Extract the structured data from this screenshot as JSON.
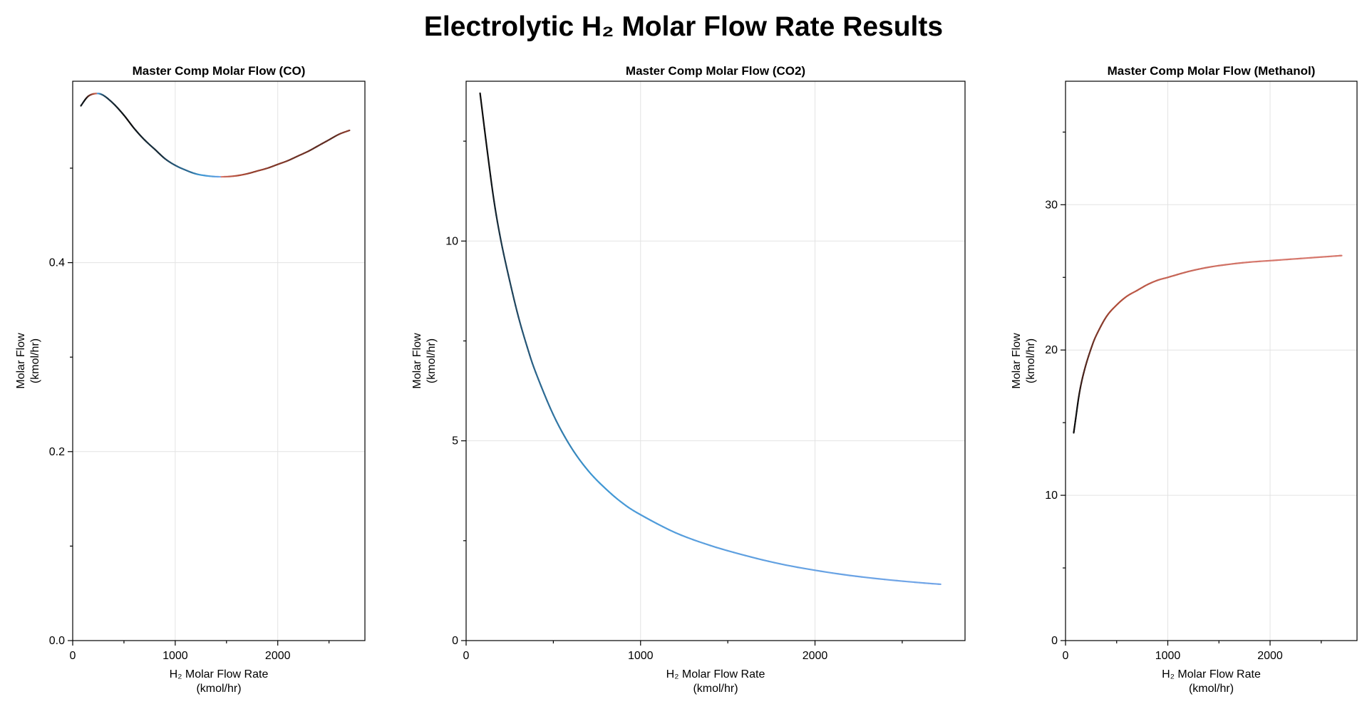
{
  "title": "Electrolytic H₂ Molar Flow Rate Results",
  "chart_data": [
    {
      "type": "line",
      "title": "Master Comp Molar Flow (CO)",
      "xlabel": [
        "H₂ Molar Flow Rate",
        "(kmol/hr)"
      ],
      "ylabel": [
        "Molar Flow",
        "(kmol/hr)"
      ],
      "xlim": [
        0,
        2850
      ],
      "ylim": [
        0,
        0.592
      ],
      "xticks": [
        0,
        1000,
        2000
      ],
      "xtick_labels": [
        "0",
        "1000",
        "2000"
      ],
      "xminor": [
        500,
        1500,
        2500
      ],
      "yticks": [
        0,
        0.2,
        0.4
      ],
      "ytick_labels": [
        "0.0",
        "0.2",
        "0.4"
      ],
      "yminor": [
        0.1,
        0.3,
        0.5
      ],
      "grid": true,
      "color_by": "slope",
      "x": [
        80,
        150,
        230,
        300,
        400,
        500,
        600,
        700,
        800,
        900,
        1000,
        1100,
        1200,
        1300,
        1400,
        1500,
        1600,
        1700,
        1800,
        1900,
        2000,
        2100,
        2200,
        2300,
        2400,
        2500,
        2600,
        2700
      ],
      "y": [
        0.566,
        0.576,
        0.579,
        0.577,
        0.568,
        0.556,
        0.542,
        0.53,
        0.52,
        0.51,
        0.503,
        0.498,
        0.494,
        0.492,
        0.491,
        0.491,
        0.492,
        0.494,
        0.497,
        0.5,
        0.504,
        0.508,
        0.513,
        0.518,
        0.524,
        0.53,
        0.536,
        0.54
      ]
    },
    {
      "type": "line",
      "title": "Master Comp Molar Flow (CO2)",
      "xlabel": [
        "H₂ Molar Flow Rate",
        "(kmol/hr)"
      ],
      "ylabel": [
        "Molar Flow",
        "(kmol/hr)"
      ],
      "xlim": [
        0,
        2860
      ],
      "ylim": [
        0,
        14.0
      ],
      "xticks": [
        0,
        1000,
        2000
      ],
      "xtick_labels": [
        "0",
        "1000",
        "2000"
      ],
      "xminor": [
        500,
        1500,
        2500
      ],
      "yticks": [
        0,
        5,
        10
      ],
      "ytick_labels": [
        "0",
        "5",
        "10"
      ],
      "yminor": [
        2.5,
        7.5,
        12.5
      ],
      "grid": true,
      "color_by": "slope",
      "x": [
        80,
        120,
        160,
        200,
        250,
        300,
        350,
        400,
        500,
        600,
        700,
        800,
        900,
        1000,
        1200,
        1400,
        1600,
        1800,
        2000,
        2200,
        2400,
        2600,
        2720
      ],
      "y": [
        13.7,
        12.3,
        11.0,
        10.0,
        9.0,
        8.1,
        7.35,
        6.7,
        5.65,
        4.85,
        4.25,
        3.8,
        3.43,
        3.15,
        2.7,
        2.38,
        2.13,
        1.92,
        1.76,
        1.63,
        1.53,
        1.45,
        1.41
      ]
    },
    {
      "type": "line",
      "title": "Master Comp Molar Flow (Methanol)",
      "xlabel": [
        "H₂ Molar Flow Rate",
        "(kmol/hr)"
      ],
      "ylabel": [
        "Molar Flow",
        "(kmol/hr)"
      ],
      "xlim": [
        0,
        2850
      ],
      "ylim": [
        0,
        38.5
      ],
      "xticks": [
        0,
        1000,
        2000
      ],
      "xtick_labels": [
        "0",
        "1000",
        "2000"
      ],
      "xminor": [
        500,
        1500,
        2500
      ],
      "yticks": [
        0,
        10,
        20,
        30
      ],
      "ytick_labels": [
        "0",
        "10",
        "20",
        "30"
      ],
      "yminor": [
        5,
        15,
        25,
        35
      ],
      "grid": true,
      "color_by": "slope",
      "x": [
        80,
        100,
        130,
        160,
        200,
        250,
        300,
        400,
        500,
        600,
        700,
        800,
        900,
        1000,
        1200,
        1400,
        1600,
        1800,
        2000,
        2200,
        2400,
        2600,
        2700
      ],
      "y": [
        14.3,
        15.3,
        16.8,
        17.9,
        19.0,
        20.1,
        21.0,
        22.3,
        23.1,
        23.7,
        24.1,
        24.5,
        24.8,
        25.0,
        25.4,
        25.7,
        25.9,
        26.05,
        26.15,
        26.25,
        26.35,
        26.45,
        26.5
      ]
    }
  ]
}
